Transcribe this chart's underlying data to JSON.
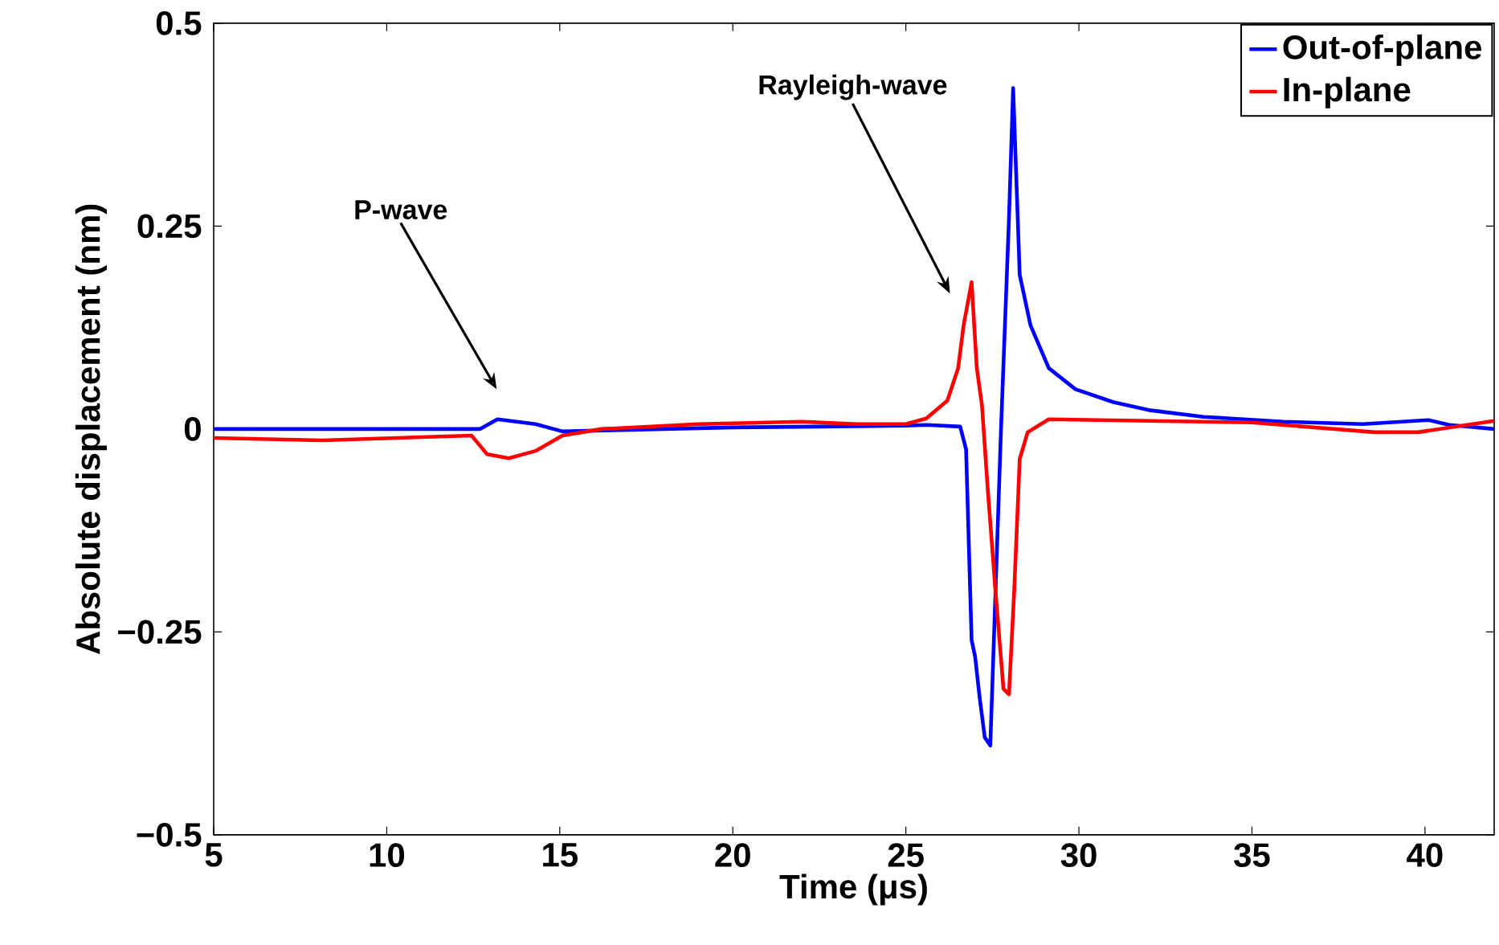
{
  "chart_data": {
    "type": "line",
    "xlabel": "Time (μs)",
    "ylabel": "Absolute displacement (nm)",
    "xlim": [
      5,
      42
    ],
    "ylim": [
      -0.5,
      0.5
    ],
    "xticks": [
      5,
      10,
      15,
      20,
      25,
      30,
      35,
      40
    ],
    "yticks": [
      {
        "value": -0.5,
        "label": "−0.5"
      },
      {
        "value": -0.25,
        "label": "−0.25"
      },
      0,
      0.25,
      0.5
    ],
    "grid": false,
    "legend": "top right",
    "marker": "none",
    "line_style": "solid",
    "annotations": [
      "P-wave",
      "Rayleigh-wave"
    ],
    "series": [
      {
        "name": "Out-of-plane",
        "color": "#0000ff",
        "x": [
          5,
          8,
          12.7,
          13.2,
          14.3,
          15.08,
          20,
          25,
          25.6,
          26.57,
          26.74,
          26.9,
          27.0,
          27.13,
          27.28,
          27.44,
          27.75,
          27.98,
          28.1,
          28.29,
          28.6,
          29.13,
          29.9,
          31.0,
          32.07,
          33.6,
          35.9,
          38.2,
          40.1,
          40.7,
          42
        ],
        "values": [
          0,
          0,
          0,
          0.012,
          0.006,
          -0.003,
          0.002,
          0.004,
          0.005,
          0.003,
          -0.025,
          -0.26,
          -0.28,
          -0.33,
          -0.38,
          -0.39,
          0,
          0.26,
          0.42,
          0.19,
          0.128,
          0.075,
          0.049,
          0.033,
          0.023,
          0.015,
          0.009,
          0.006,
          0.011,
          0.005,
          0
        ]
      },
      {
        "name": "In-plane",
        "color": "#ff0000",
        "x": [
          5,
          8.13,
          12.45,
          12.9,
          13.53,
          14.3,
          15.08,
          16.2,
          19.0,
          22.0,
          23.6,
          25.0,
          25.59,
          26.2,
          26.51,
          26.67,
          26.9,
          27.05,
          27.2,
          27.36,
          27.59,
          27.82,
          27.98,
          28.13,
          28.29,
          28.52,
          29.13,
          35.0,
          38.55,
          39.8,
          42
        ],
        "values": [
          -0.011,
          -0.014,
          -0.008,
          -0.031,
          -0.036,
          -0.027,
          -0.008,
          0,
          0.006,
          0.009,
          0.006,
          0.006,
          0.013,
          0.035,
          0.075,
          0.128,
          0.181,
          0.075,
          0.029,
          -0.07,
          -0.2,
          -0.32,
          -0.327,
          -0.2,
          -0.037,
          -0.004,
          0.012,
          0.008,
          -0.004,
          -0.004,
          0.01
        ]
      }
    ]
  }
}
